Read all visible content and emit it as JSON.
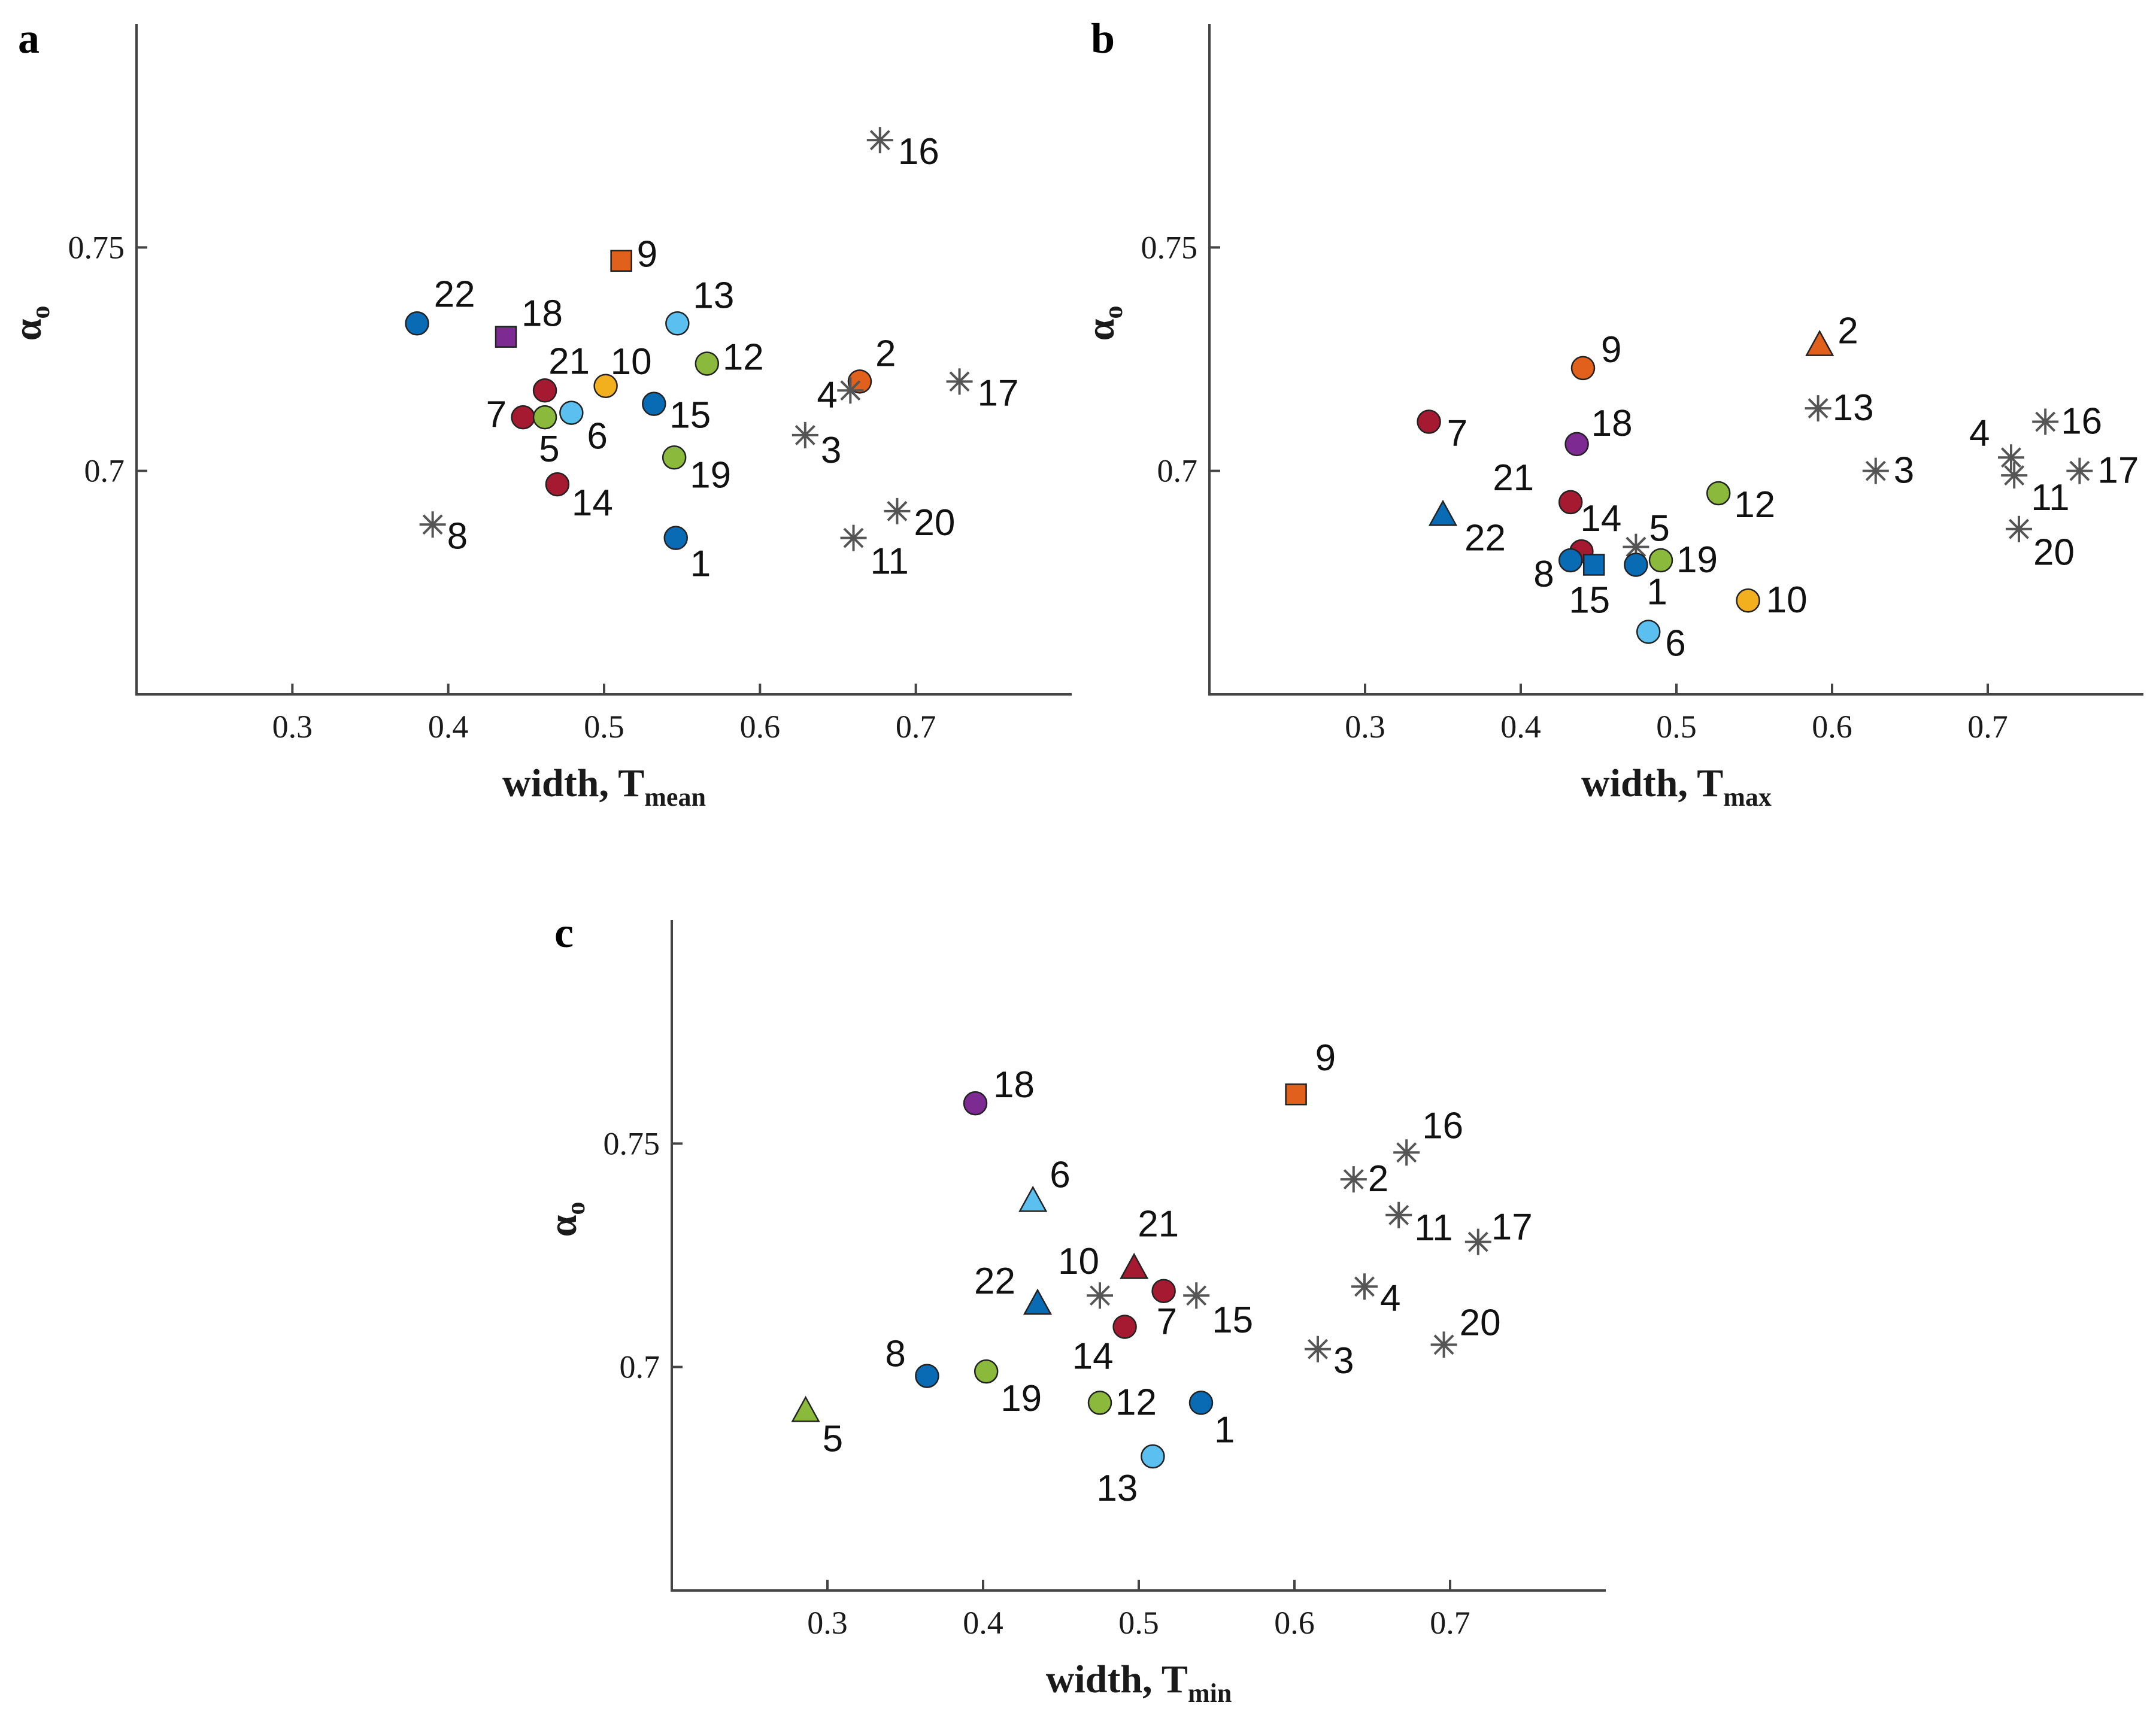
{
  "colors": {
    "blue": "#0a6bb5",
    "lightblue": "#5bc0ef",
    "red": "#a51a30",
    "green": "#8bb93c",
    "orange": "#e0601c",
    "yellow": "#f2b01e",
    "purple": "#7d2a93",
    "gray": "#555555"
  },
  "chart_data": [
    {
      "panel": "a",
      "type": "scatter",
      "xlabel": "width, T",
      "xlabel_sub": "mean",
      "ylabel": "α",
      "ylabel_sub": "o",
      "xlim": [
        0.2,
        0.8
      ],
      "ylim": [
        0.65,
        0.8
      ],
      "xticks": [
        "0.3",
        "0.4",
        "0.5",
        "0.6",
        "0.7"
      ],
      "yticks": [
        "0.7",
        "0.75"
      ],
      "points": [
        {
          "label": "22",
          "x": 0.38,
          "y": 0.733,
          "marker": "circle",
          "color": "blue"
        },
        {
          "label": "18",
          "x": 0.437,
          "y": 0.73,
          "marker": "square",
          "color": "purple"
        },
        {
          "label": "9",
          "x": 0.511,
          "y": 0.747,
          "marker": "square",
          "color": "orange"
        },
        {
          "label": "13",
          "x": 0.547,
          "y": 0.733,
          "marker": "circle",
          "color": "lightblue"
        },
        {
          "label": "12",
          "x": 0.566,
          "y": 0.724,
          "marker": "circle",
          "color": "green"
        },
        {
          "label": "2",
          "x": 0.664,
          "y": 0.72,
          "marker": "circle",
          "color": "orange"
        },
        {
          "label": "4",
          "x": 0.658,
          "y": 0.718,
          "marker": "star",
          "color": "gray"
        },
        {
          "label": "16",
          "x": 0.677,
          "y": 0.774,
          "marker": "star",
          "color": "gray"
        },
        {
          "label": "17",
          "x": 0.728,
          "y": 0.72,
          "marker": "star",
          "color": "gray"
        },
        {
          "label": "21",
          "x": 0.462,
          "y": 0.718,
          "marker": "circle",
          "color": "red"
        },
        {
          "label": "10",
          "x": 0.501,
          "y": 0.719,
          "marker": "circle",
          "color": "yellow"
        },
        {
          "label": "7",
          "x": 0.448,
          "y": 0.712,
          "marker": "circle",
          "color": "red"
        },
        {
          "label": "5",
          "x": 0.462,
          "y": 0.712,
          "marker": "circle",
          "color": "green"
        },
        {
          "label": "6",
          "x": 0.479,
          "y": 0.713,
          "marker": "circle",
          "color": "lightblue"
        },
        {
          "label": "15",
          "x": 0.532,
          "y": 0.715,
          "marker": "circle",
          "color": "blue"
        },
        {
          "label": "3",
          "x": 0.629,
          "y": 0.708,
          "marker": "star",
          "color": "gray"
        },
        {
          "label": "19",
          "x": 0.545,
          "y": 0.703,
          "marker": "circle",
          "color": "green"
        },
        {
          "label": "14",
          "x": 0.47,
          "y": 0.697,
          "marker": "circle",
          "color": "red"
        },
        {
          "label": "8",
          "x": 0.39,
          "y": 0.688,
          "marker": "star",
          "color": "gray"
        },
        {
          "label": "1",
          "x": 0.546,
          "y": 0.685,
          "marker": "circle",
          "color": "blue"
        },
        {
          "label": "11",
          "x": 0.66,
          "y": 0.685,
          "marker": "star",
          "color": "gray"
        },
        {
          "label": "20",
          "x": 0.688,
          "y": 0.691,
          "marker": "star",
          "color": "gray"
        }
      ]
    },
    {
      "panel": "b",
      "type": "scatter",
      "xlabel": "width, T",
      "xlabel_sub": "max",
      "ylabel": "α",
      "ylabel_sub": "o",
      "xlim": [
        0.2,
        0.8
      ],
      "ylim": [
        0.65,
        0.8
      ],
      "xticks": [
        "0.3",
        "0.4",
        "0.5",
        "0.6",
        "0.7"
      ],
      "yticks": [
        "0.7",
        "0.75"
      ],
      "points": [
        {
          "label": "2",
          "x": 0.592,
          "y": 0.728,
          "marker": "triangle",
          "color": "orange"
        },
        {
          "label": "9",
          "x": 0.44,
          "y": 0.723,
          "marker": "circle",
          "color": "orange"
        },
        {
          "label": "13",
          "x": 0.591,
          "y": 0.714,
          "marker": "star",
          "color": "gray"
        },
        {
          "label": "16",
          "x": 0.737,
          "y": 0.711,
          "marker": "star",
          "color": "gray"
        },
        {
          "label": "7",
          "x": 0.341,
          "y": 0.711,
          "marker": "circle",
          "color": "red"
        },
        {
          "label": "18",
          "x": 0.436,
          "y": 0.706,
          "marker": "circle",
          "color": "purple"
        },
        {
          "label": "4",
          "x": 0.715,
          "y": 0.703,
          "marker": "star",
          "color": "gray"
        },
        {
          "label": "3",
          "x": 0.628,
          "y": 0.7,
          "marker": "star",
          "color": "gray"
        },
        {
          "label": "17",
          "x": 0.759,
          "y": 0.7,
          "marker": "star",
          "color": "gray"
        },
        {
          "label": "11",
          "x": 0.717,
          "y": 0.699,
          "marker": "star",
          "color": "gray"
        },
        {
          "label": "12",
          "x": 0.527,
          "y": 0.695,
          "marker": "circle",
          "color": "green"
        },
        {
          "label": "21",
          "x": 0.432,
          "y": 0.693,
          "marker": "circle",
          "color": "red"
        },
        {
          "label": "22",
          "x": 0.35,
          "y": 0.69,
          "marker": "triangle",
          "color": "blue"
        },
        {
          "label": "20",
          "x": 0.72,
          "y": 0.687,
          "marker": "star",
          "color": "gray"
        },
        {
          "label": "5",
          "x": 0.474,
          "y": 0.683,
          "marker": "star",
          "color": "gray"
        },
        {
          "label": "14",
          "x": 0.439,
          "y": 0.682,
          "marker": "circle",
          "color": "red"
        },
        {
          "label": "8",
          "x": 0.432,
          "y": 0.68,
          "marker": "circle",
          "color": "blue"
        },
        {
          "label": "15",
          "x": 0.447,
          "y": 0.679,
          "marker": "square",
          "color": "blue"
        },
        {
          "label": "1",
          "x": 0.474,
          "y": 0.679,
          "marker": "circle",
          "color": "blue"
        },
        {
          "label": "19",
          "x": 0.49,
          "y": 0.68,
          "marker": "circle",
          "color": "green"
        },
        {
          "label": "10",
          "x": 0.546,
          "y": 0.671,
          "marker": "circle",
          "color": "yellow"
        },
        {
          "label": "6",
          "x": 0.482,
          "y": 0.664,
          "marker": "circle",
          "color": "lightblue"
        }
      ]
    },
    {
      "panel": "c",
      "type": "scatter",
      "xlabel": "width, T",
      "xlabel_sub": "min",
      "ylabel": "α",
      "ylabel_sub": "o",
      "xlim": [
        0.2,
        0.8
      ],
      "ylim": [
        0.65,
        0.8
      ],
      "xticks": [
        "0.3",
        "0.4",
        "0.5",
        "0.6",
        "0.7"
      ],
      "yticks": [
        "0.7",
        "0.75"
      ],
      "points": [
        {
          "label": "18",
          "x": 0.395,
          "y": 0.759,
          "marker": "circle",
          "color": "purple"
        },
        {
          "label": "9",
          "x": 0.601,
          "y": 0.761,
          "marker": "square",
          "color": "orange"
        },
        {
          "label": "16",
          "x": 0.672,
          "y": 0.748,
          "marker": "star",
          "color": "gray"
        },
        {
          "label": "2",
          "x": 0.638,
          "y": 0.742,
          "marker": "star",
          "color": "gray"
        },
        {
          "label": "6",
          "x": 0.432,
          "y": 0.737,
          "marker": "triangle",
          "color": "lightblue"
        },
        {
          "label": "11",
          "x": 0.667,
          "y": 0.734,
          "marker": "star",
          "color": "gray"
        },
        {
          "label": "17",
          "x": 0.718,
          "y": 0.728,
          "marker": "star",
          "color": "gray"
        },
        {
          "label": "21",
          "x": 0.497,
          "y": 0.722,
          "marker": "triangle",
          "color": "red"
        },
        {
          "label": "4",
          "x": 0.645,
          "y": 0.718,
          "marker": "star",
          "color": "gray"
        },
        {
          "label": "10",
          "x": 0.475,
          "y": 0.716,
          "marker": "star",
          "color": "gray"
        },
        {
          "label": "22",
          "x": 0.435,
          "y": 0.714,
          "marker": "triangle",
          "color": "blue"
        },
        {
          "label": "15",
          "x": 0.537,
          "y": 0.716,
          "marker": "star",
          "color": "gray"
        },
        {
          "label": "7",
          "x": 0.516,
          "y": 0.717,
          "marker": "circle",
          "color": "red"
        },
        {
          "label": "14",
          "x": 0.491,
          "y": 0.709,
          "marker": "circle",
          "color": "red"
        },
        {
          "label": "3",
          "x": 0.615,
          "y": 0.704,
          "marker": "star",
          "color": "gray"
        },
        {
          "label": "20",
          "x": 0.696,
          "y": 0.705,
          "marker": "star",
          "color": "gray"
        },
        {
          "label": "8",
          "x": 0.364,
          "y": 0.698,
          "marker": "circle",
          "color": "blue"
        },
        {
          "label": "19",
          "x": 0.402,
          "y": 0.699,
          "marker": "circle",
          "color": "green"
        },
        {
          "label": "12",
          "x": 0.475,
          "y": 0.692,
          "marker": "circle",
          "color": "green"
        },
        {
          "label": "1",
          "x": 0.54,
          "y": 0.692,
          "marker": "circle",
          "color": "blue"
        },
        {
          "label": "5",
          "x": 0.286,
          "y": 0.69,
          "marker": "triangle",
          "color": "green"
        },
        {
          "label": "13",
          "x": 0.509,
          "y": 0.68,
          "marker": "circle",
          "color": "lightblue"
        }
      ]
    }
  ]
}
